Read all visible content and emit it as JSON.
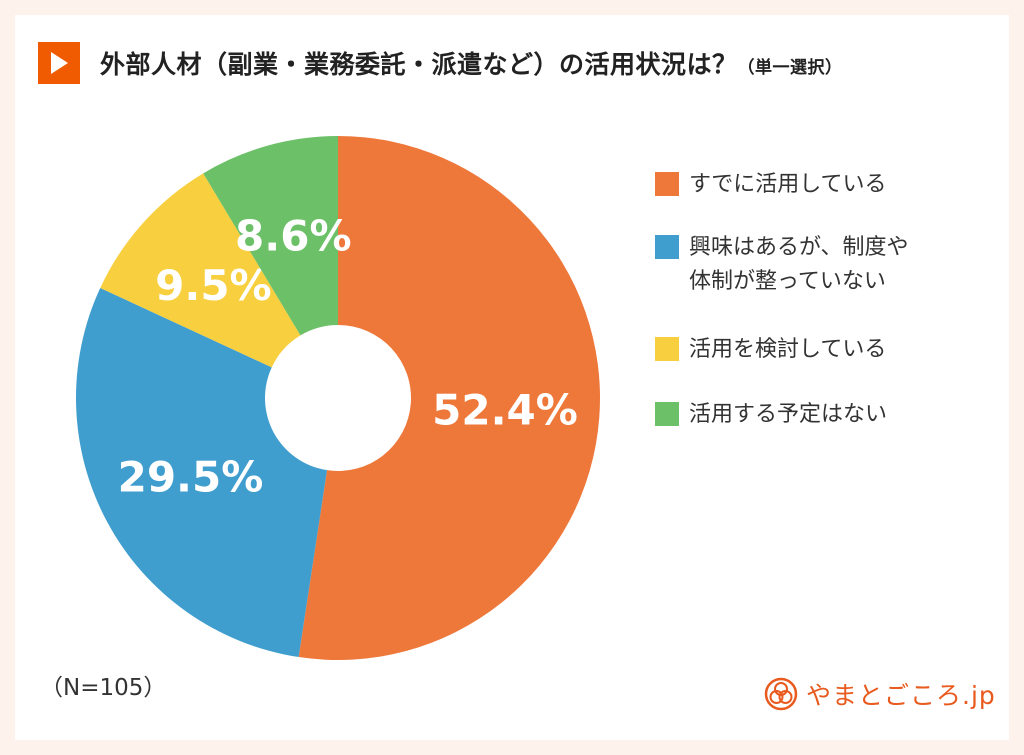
{
  "title": "外部人材（副業・業務委託・派遣など）の活用状況は？",
  "title_note": "（単一選択）",
  "sample_size": "（N=105）",
  "logo_text": "やまとごころ.jp",
  "colors": {
    "accent": "#f05a00",
    "background": "#fdf2ec"
  },
  "chart_data": {
    "type": "pie",
    "donut": true,
    "start": "top",
    "direction": "clockwise",
    "legend_position": "right",
    "series": [
      {
        "name": "すでに活用している",
        "value": 52.4,
        "label": "52.4%",
        "color": "#ee773a"
      },
      {
        "name": "興味はあるが、制度や\n体制が整っていない",
        "value": 29.5,
        "label": "29.5%",
        "color": "#409ecf"
      },
      {
        "name": "活用を検討している",
        "value": 9.5,
        "label": "9.5%",
        "color": "#f8cf3e"
      },
      {
        "name": "活用する予定はない",
        "value": 8.6,
        "label": "8.6%",
        "color": "#6cc068"
      }
    ]
  }
}
